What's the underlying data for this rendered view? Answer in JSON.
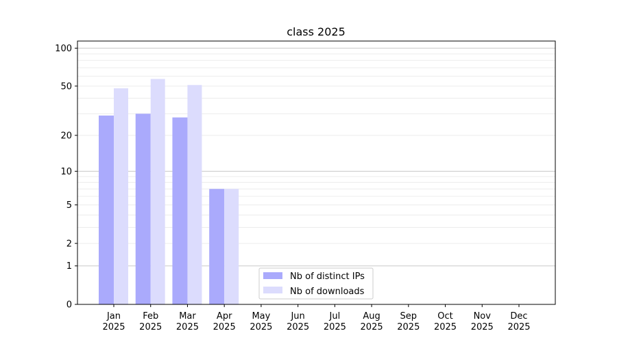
{
  "chart_data": {
    "type": "bar",
    "title": "class 2025",
    "xlabel": "",
    "ylabel": "",
    "yscale": "log(1+y)",
    "ylim": [
      0,
      110
    ],
    "yticks": [
      0,
      1,
      2,
      5,
      10,
      20,
      50,
      100
    ],
    "grid": true,
    "legend_position": "bottom-center",
    "categories": [
      "Jan\n2025",
      "Feb\n2025",
      "Mar\n2025",
      "Apr\n2025",
      "May\n2025",
      "Jun\n2025",
      "Jul\n2025",
      "Aug\n2025",
      "Sep\n2025",
      "Oct\n2025",
      "Nov\n2025",
      "Dec\n2025"
    ],
    "series": [
      {
        "name": "Nb of distinct IPs",
        "color": "#aaaafc",
        "values": [
          29,
          30,
          28,
          7,
          0,
          0,
          0,
          0,
          0,
          0,
          0,
          0
        ]
      },
      {
        "name": "Nb of downloads",
        "color": "#dcdcfd",
        "values": [
          48,
          57,
          51,
          7,
          0,
          0,
          0,
          0,
          0,
          0,
          0,
          0
        ]
      }
    ]
  }
}
